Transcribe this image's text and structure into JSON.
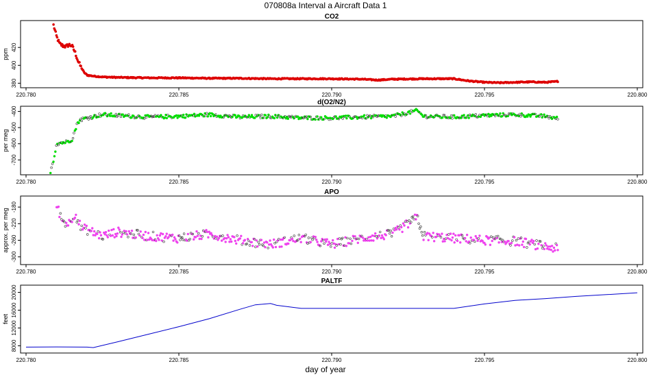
{
  "title": "070808a   Interval a Aircraft Data 1",
  "xlabel": "day of year",
  "colors": {
    "CO2": "#dd0000",
    "d(O2/N2)": "#00dd00",
    "APO": "#ee44ee",
    "PALTF": "#0000cc"
  },
  "chart_data": [
    {
      "type": "scatter",
      "title": "CO2",
      "ylabel": "ppm",
      "xlim": [
        220.78,
        220.8
      ],
      "ylim": [
        378,
        447
      ],
      "xticks": [
        "220.780",
        "220.785",
        "220.790",
        "220.795",
        "220.800"
      ],
      "yticks": [
        380,
        400,
        420
      ],
      "series": [
        {
          "x": [
            220.7809,
            220.781,
            220.7811,
            220.7812,
            220.7813,
            220.7814,
            220.7815,
            220.7816,
            220.7817,
            220.7818,
            220.7819,
            220.782,
            220.7822,
            220.7825,
            220.783,
            220.784,
            220.785,
            220.786,
            220.787,
            220.788,
            220.789,
            220.79,
            220.791,
            220.7915,
            220.792,
            220.793,
            220.794,
            220.7945,
            220.795,
            220.7955,
            220.796,
            220.7965,
            220.797,
            220.7974
          ],
          "y": [
            445,
            432,
            424,
            422,
            421,
            423,
            422,
            415,
            405,
            398,
            392,
            389,
            388,
            387,
            386.5,
            386,
            386,
            385.5,
            385.5,
            385,
            385,
            385,
            384.5,
            383.5,
            384.5,
            385,
            385,
            382.5,
            381,
            380.5,
            381,
            381.5,
            381,
            382
          ]
        }
      ]
    },
    {
      "type": "scatter",
      "title": "d(O2/N2)",
      "ylabel": "per meg",
      "xlim": [
        220.78,
        220.8
      ],
      "ylim": [
        -775,
        -385
      ],
      "xticks": [
        "220.780",
        "220.785",
        "220.790",
        "220.795",
        "220.800"
      ],
      "yticks": [
        -700,
        -600,
        -500,
        -400
      ],
      "series": [
        {
          "x": [
            220.7808,
            220.7809,
            220.781,
            220.7811,
            220.7813,
            220.7815,
            220.7816,
            220.7817,
            220.7818,
            220.782,
            220.7825,
            220.783,
            220.784,
            220.785,
            220.786,
            220.787,
            220.788,
            220.789,
            220.79,
            220.791,
            220.792,
            220.7928,
            220.793,
            220.794,
            220.795,
            220.796,
            220.797,
            220.7974
          ],
          "y": [
            -770,
            -700,
            -600,
            -595,
            -590,
            -575,
            -520,
            -465,
            -450,
            -440,
            -420,
            -425,
            -435,
            -430,
            -420,
            -435,
            -430,
            -440,
            -440,
            -435,
            -430,
            -395,
            -430,
            -435,
            -425,
            -420,
            -430,
            -445
          ]
        }
      ]
    },
    {
      "type": "scatter",
      "title": "APO",
      "ylabel": "approx. per meg",
      "xlim": [
        220.78,
        220.8
      ],
      "ylim": [
        -312,
        -160
      ],
      "xticks": [
        "220.780",
        "220.785",
        "220.790",
        "220.795",
        "220.800"
      ],
      "yticks": [
        -300,
        -260,
        -220,
        -180
      ],
      "series": [
        {
          "x": [
            220.781,
            220.7812,
            220.7814,
            220.7816,
            220.7818,
            220.782,
            220.7825,
            220.783,
            220.784,
            220.785,
            220.786,
            220.787,
            220.788,
            220.789,
            220.79,
            220.791,
            220.792,
            220.7928,
            220.793,
            220.794,
            220.795,
            220.796,
            220.797,
            220.7974
          ],
          "y": [
            -175,
            -215,
            -220,
            -195,
            -230,
            -235,
            -250,
            -240,
            -250,
            -255,
            -245,
            -260,
            -270,
            -255,
            -270,
            -255,
            -245,
            -205,
            -250,
            -255,
            -260,
            -262,
            -275,
            -280
          ]
        }
      ]
    },
    {
      "type": "line",
      "title": "PALTF",
      "ylabel": "feet",
      "xlim": [
        220.78,
        220.8
      ],
      "ylim": [
        7000,
        21000
      ],
      "xticks": [
        "220.780",
        "220.785",
        "220.790",
        "220.795",
        "220.800"
      ],
      "yticks": [
        8000,
        12000,
        16000,
        20000
      ],
      "series": [
        {
          "x": [
            220.78,
            220.781,
            220.782,
            220.7822,
            220.783,
            220.784,
            220.785,
            220.786,
            220.787,
            220.7875,
            220.788,
            220.7882,
            220.789,
            220.79,
            220.791,
            220.792,
            220.793,
            220.794,
            220.795,
            220.796,
            220.797,
            220.798,
            220.799,
            220.8
          ],
          "y": [
            7700,
            7750,
            7700,
            7600,
            8900,
            10600,
            12300,
            14100,
            16200,
            17200,
            17500,
            17100,
            16400,
            16400,
            16400,
            16400,
            16400,
            16400,
            17400,
            18200,
            18600,
            19100,
            19500,
            19900
          ]
        }
      ]
    }
  ]
}
